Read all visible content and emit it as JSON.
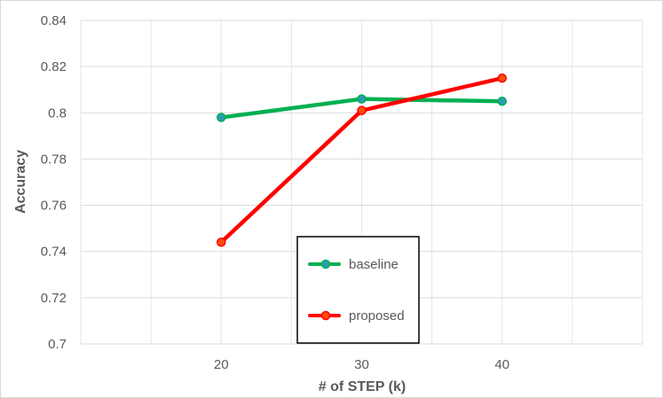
{
  "chart_data": {
    "type": "line",
    "title": "",
    "xlabel": "# of STEP (k)",
    "ylabel": "Accuracy",
    "x": [
      20,
      30,
      40
    ],
    "x_tick_labels": [
      "20",
      "30",
      "40"
    ],
    "xlim": [
      10,
      50
    ],
    "ylim": [
      0.7,
      0.84
    ],
    "y_ticks": [
      0.7,
      0.72,
      0.74,
      0.76,
      0.78,
      0.8,
      0.82,
      0.84
    ],
    "y_tick_labels": [
      "0.7",
      "0.72",
      "0.74",
      "0.76",
      "0.78",
      "0.8",
      "0.82",
      "0.84"
    ],
    "grid": true,
    "legend_position": "bottom-center",
    "series": [
      {
        "name": "baseline",
        "values": [
          0.798,
          0.806,
          0.805
        ],
        "line_color": "#00b050",
        "marker_color": "#2e9bb5"
      },
      {
        "name": "proposed",
        "values": [
          0.744,
          0.801,
          0.815
        ],
        "line_color": "#ff0000",
        "marker_color": "#ff4d0d"
      }
    ]
  }
}
